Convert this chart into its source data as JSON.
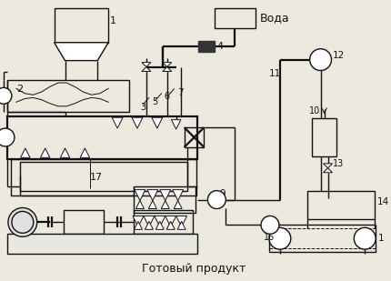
{
  "bg": "#ede9df",
  "lc": "#111111",
  "lw": 1.0,
  "lw2": 1.6,
  "lw3": 0.7,
  "fs": 7.5,
  "fss": 6.5,
  "label_voda": "Вода",
  "label_product": "Готовый продукт"
}
